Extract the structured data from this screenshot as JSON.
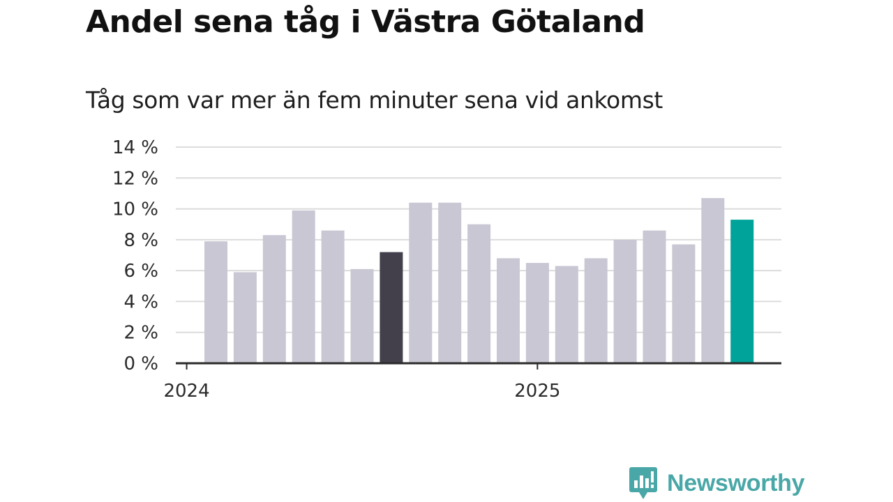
{
  "header": {
    "title": "Andel sena tåg i Västra Götaland",
    "subtitle": "Tåg som var mer än fem minuter sena vid ankomst"
  },
  "chart_data": {
    "type": "bar",
    "title": "Andel sena tåg i Västra Götaland",
    "subtitle": "Tåg som var mer än fem minuter sena vid ankomst",
    "values": [
      7.9,
      5.9,
      8.3,
      9.9,
      8.6,
      6.1,
      7.2,
      10.4,
      10.4,
      9.0,
      6.8,
      6.5,
      6.3,
      6.8,
      8.0,
      8.6,
      7.7,
      10.7,
      9.3
    ],
    "highlight": [
      {
        "index": 6,
        "color": "#43404c"
      },
      {
        "index": 18,
        "color": "#00a39a"
      }
    ],
    "bar_color": "#c9c7d3",
    "y_ticks": [
      "0 %",
      "2 %",
      "4 %",
      "6 %",
      "8 %",
      "10 %",
      "12 %",
      "14 %"
    ],
    "ylim": [
      0,
      14
    ],
    "x_ticks": [
      {
        "label": "2024",
        "at_bar": 0
      },
      {
        "label": "2025",
        "at_bar": 12
      }
    ],
    "grid": true
  },
  "brand": {
    "name": "Newsworthy",
    "color": "#4aa7a7"
  }
}
